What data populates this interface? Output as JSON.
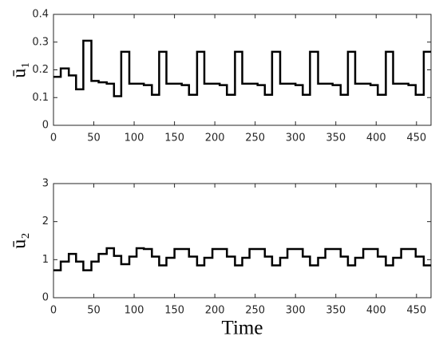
{
  "chart_data": [
    {
      "type": "step",
      "ylabel": "ū₁",
      "x": [
        0,
        9,
        19,
        28,
        37,
        47,
        56,
        66,
        75,
        84,
        94,
        103,
        112,
        122,
        131,
        140,
        150,
        159,
        168,
        178,
        187,
        197,
        206,
        215,
        225,
        234,
        243,
        253,
        262,
        271,
        281,
        290,
        300,
        309,
        318,
        328,
        337,
        346,
        356,
        365,
        374,
        384,
        393,
        402,
        412,
        421,
        431,
        440,
        449,
        459
      ],
      "series": [
        {
          "name": "u1",
          "color": "#000000",
          "values": [
            0.175,
            0.205,
            0.18,
            0.13,
            0.305,
            0.16,
            0.155,
            0.15,
            0.105,
            0.265,
            0.15,
            0.15,
            0.145,
            0.11,
            0.265,
            0.15,
            0.15,
            0.145,
            0.11,
            0.265,
            0.15,
            0.15,
            0.145,
            0.11,
            0.265,
            0.15,
            0.15,
            0.145,
            0.11,
            0.265,
            0.15,
            0.15,
            0.145,
            0.11,
            0.265,
            0.15,
            0.15,
            0.145,
            0.11,
            0.265,
            0.15,
            0.15,
            0.145,
            0.11,
            0.265,
            0.15,
            0.15,
            0.145,
            0.11,
            0.265
          ]
        }
      ],
      "xlim": [
        0,
        468
      ],
      "xticks": [
        0,
        50,
        100,
        150,
        200,
        250,
        300,
        350,
        400,
        450
      ],
      "ylim": [
        0,
        0.4
      ],
      "yticks": [
        0,
        0.1,
        0.2,
        0.3,
        0.4
      ]
    },
    {
      "type": "step",
      "ylabel": "ū₂",
      "xlabel": "Time",
      "x": [
        0,
        9,
        19,
        28,
        37,
        47,
        56,
        66,
        75,
        84,
        94,
        103,
        112,
        122,
        131,
        140,
        150,
        159,
        168,
        178,
        187,
        197,
        206,
        215,
        225,
        234,
        243,
        253,
        262,
        271,
        281,
        290,
        300,
        309,
        318,
        328,
        337,
        346,
        356,
        365,
        374,
        384,
        393,
        402,
        412,
        421,
        431,
        440,
        449,
        459
      ],
      "series": [
        {
          "name": "u2",
          "color": "#000000",
          "values": [
            0.72,
            0.95,
            1.15,
            0.95,
            0.72,
            0.95,
            1.15,
            1.3,
            1.1,
            0.88,
            1.08,
            1.3,
            1.28,
            1.08,
            0.85,
            1.05,
            1.28,
            1.28,
            1.08,
            0.85,
            1.05,
            1.28,
            1.28,
            1.08,
            0.85,
            1.05,
            1.28,
            1.28,
            1.08,
            0.85,
            1.05,
            1.28,
            1.28,
            1.08,
            0.85,
            1.05,
            1.28,
            1.28,
            1.08,
            0.85,
            1.05,
            1.28,
            1.28,
            1.08,
            0.85,
            1.05,
            1.28,
            1.28,
            1.08,
            0.85
          ]
        }
      ],
      "xlim": [
        0,
        468
      ],
      "xticks": [
        0,
        50,
        100,
        150,
        200,
        250,
        300,
        350,
        400,
        450
      ],
      "ylim": [
        0,
        3
      ],
      "yticks": [
        0,
        1,
        2,
        3
      ]
    }
  ]
}
